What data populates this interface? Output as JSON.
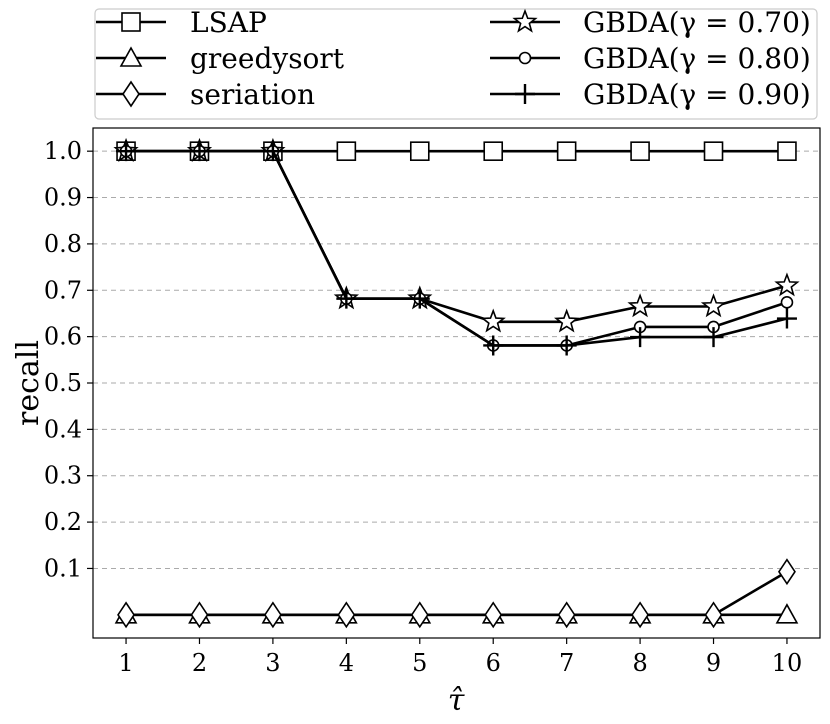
{
  "chart_data": {
    "type": "line",
    "xlabel": "τ̂",
    "ylabel": "recall",
    "x": [
      1,
      2,
      3,
      4,
      5,
      6,
      7,
      8,
      9,
      10
    ],
    "xticks": [
      "1",
      "2",
      "3",
      "4",
      "5",
      "6",
      "7",
      "8",
      "9",
      "10"
    ],
    "yticks": [
      "0.1",
      "0.2",
      "0.3",
      "0.4",
      "0.5",
      "0.6",
      "0.7",
      "0.8",
      "0.9",
      "1.0"
    ],
    "xlim": [
      0.55,
      10.45
    ],
    "ylim": [
      -0.05,
      1.05
    ],
    "grid": "horizontal-dashed",
    "legend_position": "top (outside plot)",
    "series": [
      {
        "name": "LSAP",
        "marker": "square",
        "values": [
          1.0,
          1.0,
          1.0,
          1.0,
          1.0,
          1.0,
          1.0,
          1.0,
          1.0,
          1.0
        ]
      },
      {
        "name": "greedysort",
        "marker": "triangle",
        "values": [
          0,
          0,
          0,
          0,
          0,
          0,
          0,
          0,
          0,
          0
        ]
      },
      {
        "name": "seriation",
        "marker": "diamond",
        "values": [
          0,
          0,
          0,
          0,
          0,
          0,
          0,
          0,
          0,
          0.093
        ]
      },
      {
        "name": "GBDA(γ = 0.70)",
        "marker": "star",
        "values": [
          1.0,
          1.0,
          1.0,
          0.682,
          0.682,
          0.632,
          0.632,
          0.665,
          0.665,
          0.71
        ]
      },
      {
        "name": "GBDA(γ = 0.80)",
        "marker": "circle",
        "values": [
          1.0,
          1.0,
          1.0,
          0.682,
          0.682,
          0.581,
          0.581,
          0.621,
          0.621,
          0.674
        ]
      },
      {
        "name": "GBDA(γ = 0.90)",
        "marker": "plus",
        "values": [
          1.0,
          1.0,
          1.0,
          0.682,
          0.682,
          0.581,
          0.581,
          0.599,
          0.599,
          0.639
        ]
      }
    ]
  }
}
